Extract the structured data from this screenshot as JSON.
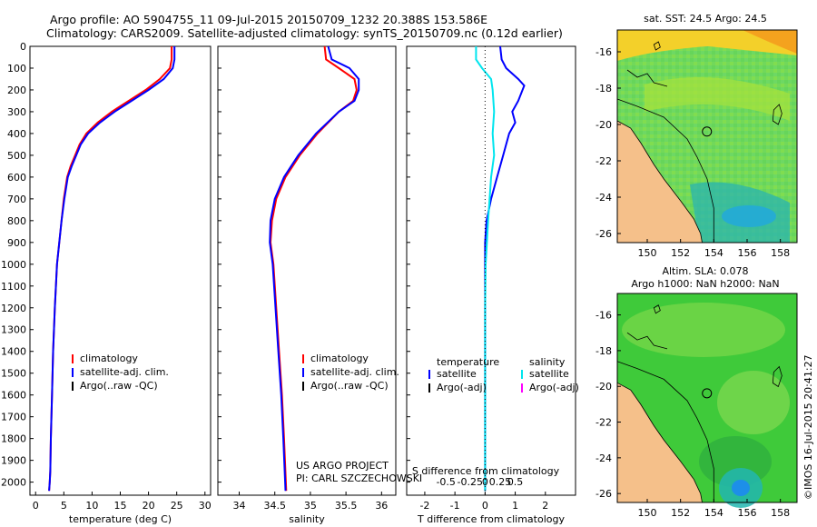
{
  "header": {
    "line1": "Argo profile: AO 5904755_11 09-Jul-2015 20150709_1232 20.388S 153.586E",
    "line2": "Climatology: CARS2009. Satellite-adjusted climatology: synTS_20150709.nc (0.12d earlier)"
  },
  "colors": {
    "climatology": "#ff0000",
    "satellite": "#0000ff",
    "argo": "#000000",
    "salinity_satellite": "#00e5ee",
    "salinity_argo": "#ff00ff",
    "land": "#f5c08a"
  },
  "credits": {
    "project": "US ARGO PROJECT",
    "pi": "PI: CARL SZCZECHOWSKI"
  },
  "watermark": "©IMOS 16-Jul-2015 20:41:27",
  "chart_data": [
    {
      "type": "line",
      "xlabel": "temperature (deg C)",
      "xlim": [
        -1,
        31
      ],
      "ylim": [
        2060,
        0
      ],
      "xticks": [
        0,
        5,
        10,
        15,
        20,
        25,
        30
      ],
      "yticks": [
        0,
        100,
        200,
        300,
        400,
        500,
        600,
        700,
        800,
        900,
        1000,
        1100,
        1200,
        1300,
        1400,
        1500,
        1600,
        1700,
        1800,
        1900,
        2000
      ],
      "legend": [
        "climatology",
        "satellite-adj. clim.",
        "Argo(..raw -QC)"
      ],
      "series": [
        {
          "name": "climatology",
          "color": "#ff0000",
          "x": [
            24.1,
            24.1,
            23.8,
            22.0,
            19.5,
            16.5,
            13.5,
            11.0,
            9.0,
            7.8,
            7.0,
            6.2,
            5.6,
            5.0,
            4.6,
            4.2,
            3.8,
            3.4,
            3.1,
            2.9,
            2.7,
            2.6,
            2.5,
            2.4
          ],
          "y": [
            0,
            60,
            100,
            150,
            200,
            250,
            300,
            350,
            400,
            450,
            500,
            550,
            600,
            700,
            800,
            900,
            1000,
            1200,
            1400,
            1600,
            1800,
            1950,
            2000,
            2040
          ]
        },
        {
          "name": "satellite-adj. clim.",
          "color": "#0000ff",
          "x": [
            24.6,
            24.6,
            24.3,
            22.7,
            20.0,
            17.0,
            14.0,
            11.4,
            9.3,
            8.0,
            7.2,
            6.4,
            5.7,
            5.1,
            4.6,
            4.2,
            3.8,
            3.4,
            3.1,
            2.9,
            2.7,
            2.6,
            2.5,
            2.4
          ],
          "y": [
            0,
            60,
            100,
            150,
            200,
            250,
            300,
            350,
            400,
            450,
            500,
            550,
            600,
            700,
            800,
            900,
            1000,
            1200,
            1400,
            1600,
            1800,
            1950,
            2000,
            2040
          ]
        }
      ]
    },
    {
      "type": "line",
      "xlabel": "salinity",
      "xlim": [
        33.7,
        36.2
      ],
      "ylim": [
        2060,
        0
      ],
      "xticks": [
        34,
        34.5,
        35,
        35.5,
        36
      ],
      "legend": [
        "climatology",
        "satellite-adj. clim.",
        "Argo(..raw -QC)"
      ],
      "series": [
        {
          "name": "climatology",
          "color": "#ff0000",
          "x": [
            35.2,
            35.22,
            35.4,
            35.62,
            35.65,
            35.6,
            35.4,
            35.1,
            34.85,
            34.65,
            34.52,
            34.46,
            34.44,
            34.48,
            34.52,
            34.56,
            34.6,
            34.63,
            34.66
          ],
          "y": [
            0,
            60,
            100,
            150,
            200,
            250,
            300,
            400,
            500,
            600,
            700,
            800,
            900,
            1000,
            1200,
            1400,
            1600,
            1800,
            2040
          ]
        },
        {
          "name": "satellite-adj. clim.",
          "color": "#0000ff",
          "x": [
            35.25,
            35.3,
            35.55,
            35.68,
            35.68,
            35.62,
            35.4,
            35.08,
            34.83,
            34.63,
            34.5,
            34.44,
            34.43,
            34.47,
            34.51,
            34.55,
            34.59,
            34.62,
            34.65
          ],
          "y": [
            0,
            60,
            100,
            150,
            200,
            250,
            300,
            400,
            500,
            600,
            700,
            800,
            900,
            1000,
            1200,
            1400,
            1600,
            1800,
            2040
          ]
        }
      ]
    },
    {
      "type": "line",
      "xlabel": "T difference from climatology",
      "xlabel2": "S difference from climatology",
      "xlim": [
        -2.6,
        3.0
      ],
      "ylim": [
        2060,
        0
      ],
      "xticks": [
        -2,
        -1,
        0,
        1,
        2
      ],
      "xticks2": [
        "-0.5",
        "-0.25",
        "0",
        "0.25",
        "0.5"
      ],
      "legend_left": {
        "title": "temperature",
        "items": [
          "satellite",
          "Argo(-adj)"
        ]
      },
      "legend_right": {
        "title": "salinity",
        "items": [
          "satellite",
          "Argo(-adj)"
        ]
      },
      "series": [
        {
          "name": "satellite",
          "color": "#0000ff",
          "x": [
            0.5,
            0.55,
            0.7,
            1.1,
            1.3,
            1.1,
            0.9,
            1.0,
            0.8,
            0.6,
            0.4,
            0.2,
            0.05,
            0.0,
            0.0,
            0.0,
            0.0,
            0.0,
            0.0
          ],
          "y": [
            0,
            60,
            100,
            150,
            180,
            250,
            300,
            350,
            400,
            500,
            600,
            700,
            800,
            900,
            1000,
            1200,
            1500,
            1800,
            2040
          ]
        },
        {
          "name": "satellite",
          "color": "#00e5ee",
          "x": [
            -0.3,
            -0.3,
            -0.1,
            0.2,
            0.25,
            0.3,
            0.25,
            0.3,
            0.2,
            0.1,
            0.02,
            0.0,
            0.0,
            0.0,
            0.0
          ],
          "y": [
            0,
            60,
            100,
            150,
            200,
            300,
            400,
            500,
            600,
            800,
            1000,
            1200,
            1500,
            1800,
            2040
          ]
        }
      ]
    },
    {
      "type": "heatmap",
      "title": "sat. SST: 24.5 Argo: 24.5",
      "xticks": [
        150,
        152,
        154,
        156,
        158
      ],
      "yticks": [
        -16,
        -18,
        -20,
        -22,
        -24,
        -26
      ],
      "xlim": [
        148.2,
        159
      ],
      "ylim": [
        -26.5,
        -14.8
      ]
    },
    {
      "type": "heatmap",
      "title": "Altim. SLA: 0.078",
      "subtitle": "Argo h1000: NaN h2000: NaN",
      "xticks": [
        150,
        152,
        154,
        156,
        158
      ],
      "yticks": [
        -16,
        -18,
        -20,
        -22,
        -24,
        -26
      ],
      "xlim": [
        148.2,
        159
      ],
      "ylim": [
        -26.5,
        -14.8
      ]
    }
  ]
}
